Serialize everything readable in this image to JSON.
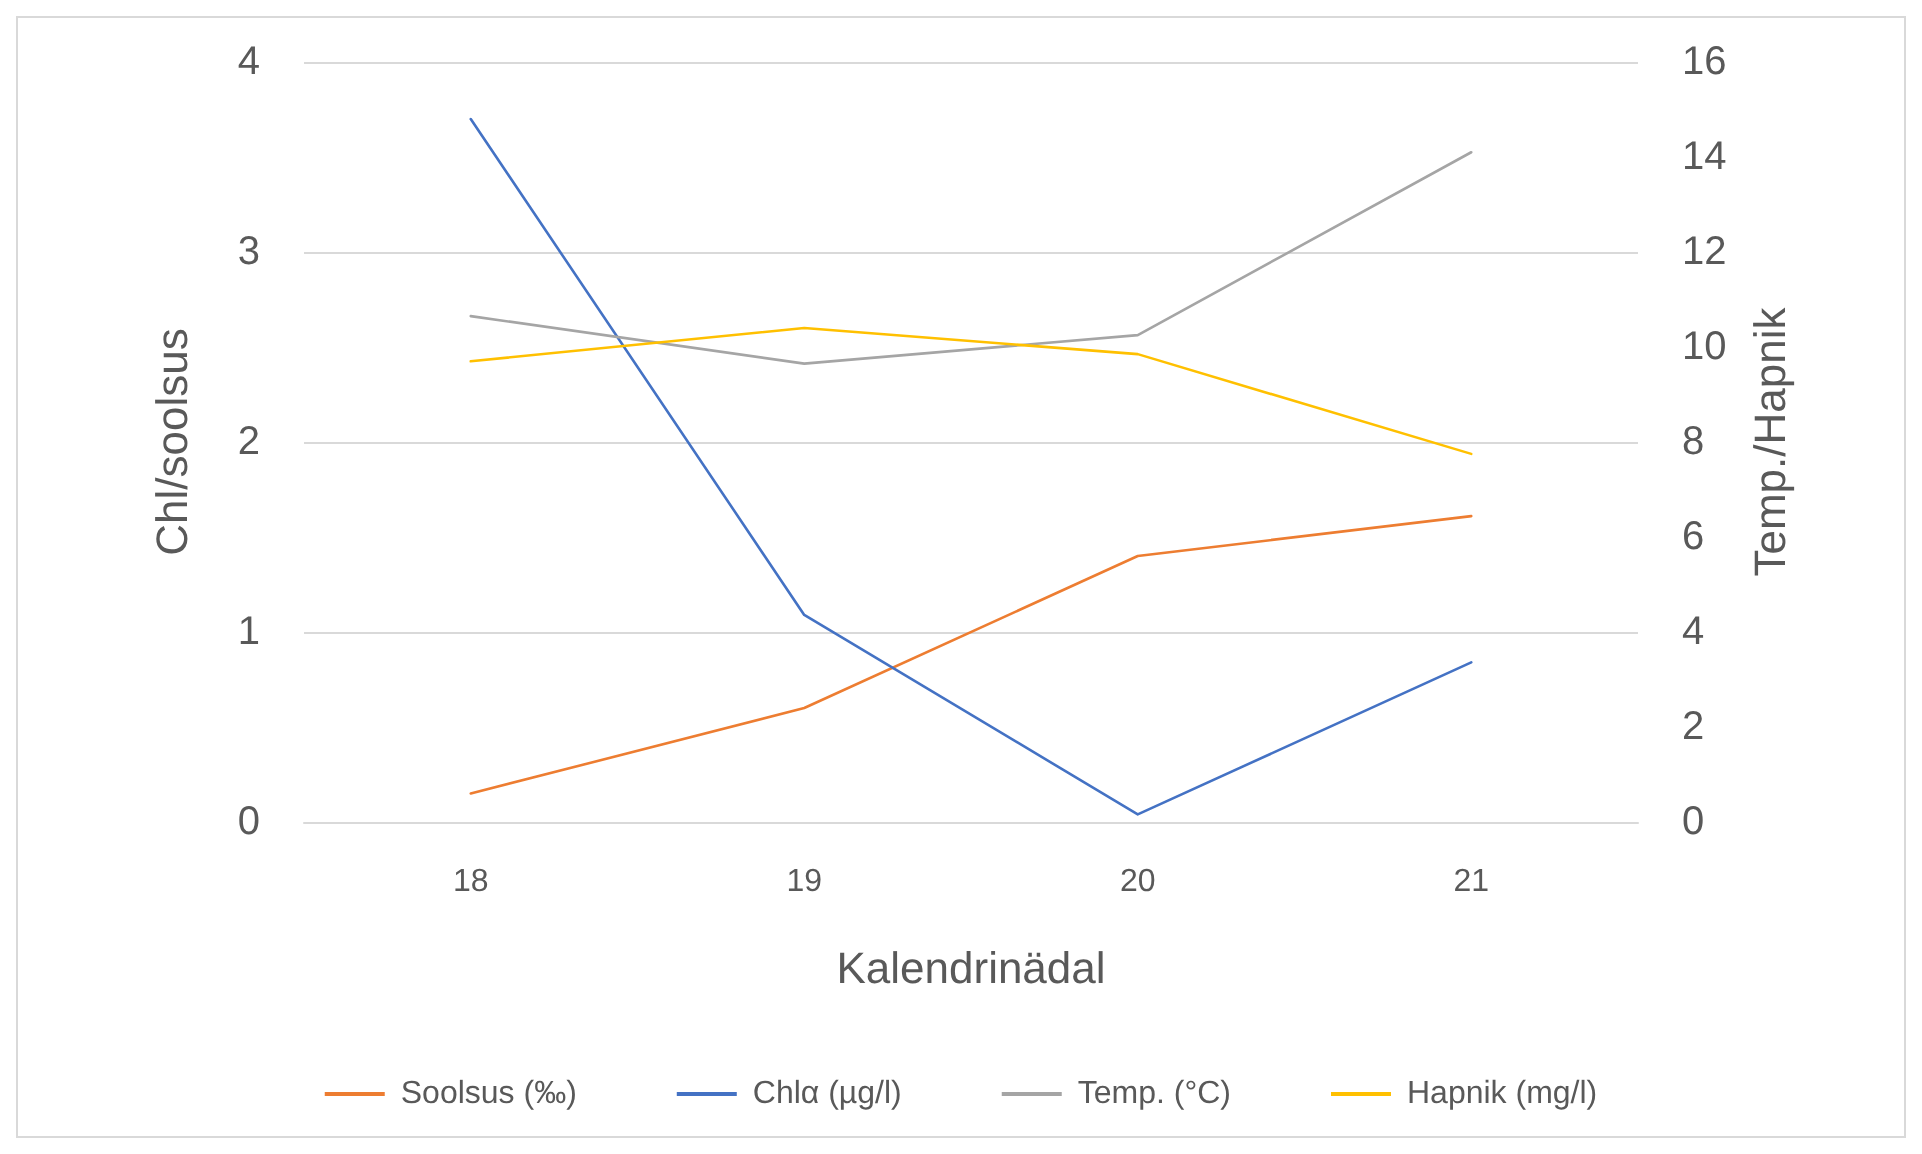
{
  "chart_data": {
    "type": "line",
    "xlabel": "Kalendrinädal",
    "ylabel": "Chl/soolsus",
    "y2label": "Temp./Hapnik",
    "categories": [
      "18",
      "19",
      "20",
      "21"
    ],
    "series": [
      {
        "name": "Soolsus (‰)",
        "color": "#ed7d31",
        "values": [
          0.15,
          0.6,
          1.4,
          1.61
        ]
      },
      {
        "name": "Chlα (µg/l)",
        "color": "#4472c4",
        "values": [
          3.7,
          1.09,
          0.04,
          0.84
        ]
      },
      {
        "name": "Temp. (°C)",
        "color": "#a5a5a5",
        "values": [
          10.65,
          9.65,
          10.25,
          14.1
        ],
        "axis": "y2"
      },
      {
        "name": "Hapnik (mg/l)",
        "color": "#ffc000",
        "values": [
          9.7,
          10.4,
          9.85,
          7.75
        ],
        "axis": "y2"
      }
    ],
    "ylim": [
      0,
      4
    ],
    "yticks": [
      0,
      1,
      2,
      3,
      4
    ],
    "y2lim": [
      0,
      16
    ],
    "y2ticks": [
      0,
      2,
      4,
      6,
      8,
      10,
      12,
      14,
      16
    ],
    "grid": "y",
    "legend": "bottom",
    "marker": "none",
    "line_style": "solid"
  }
}
